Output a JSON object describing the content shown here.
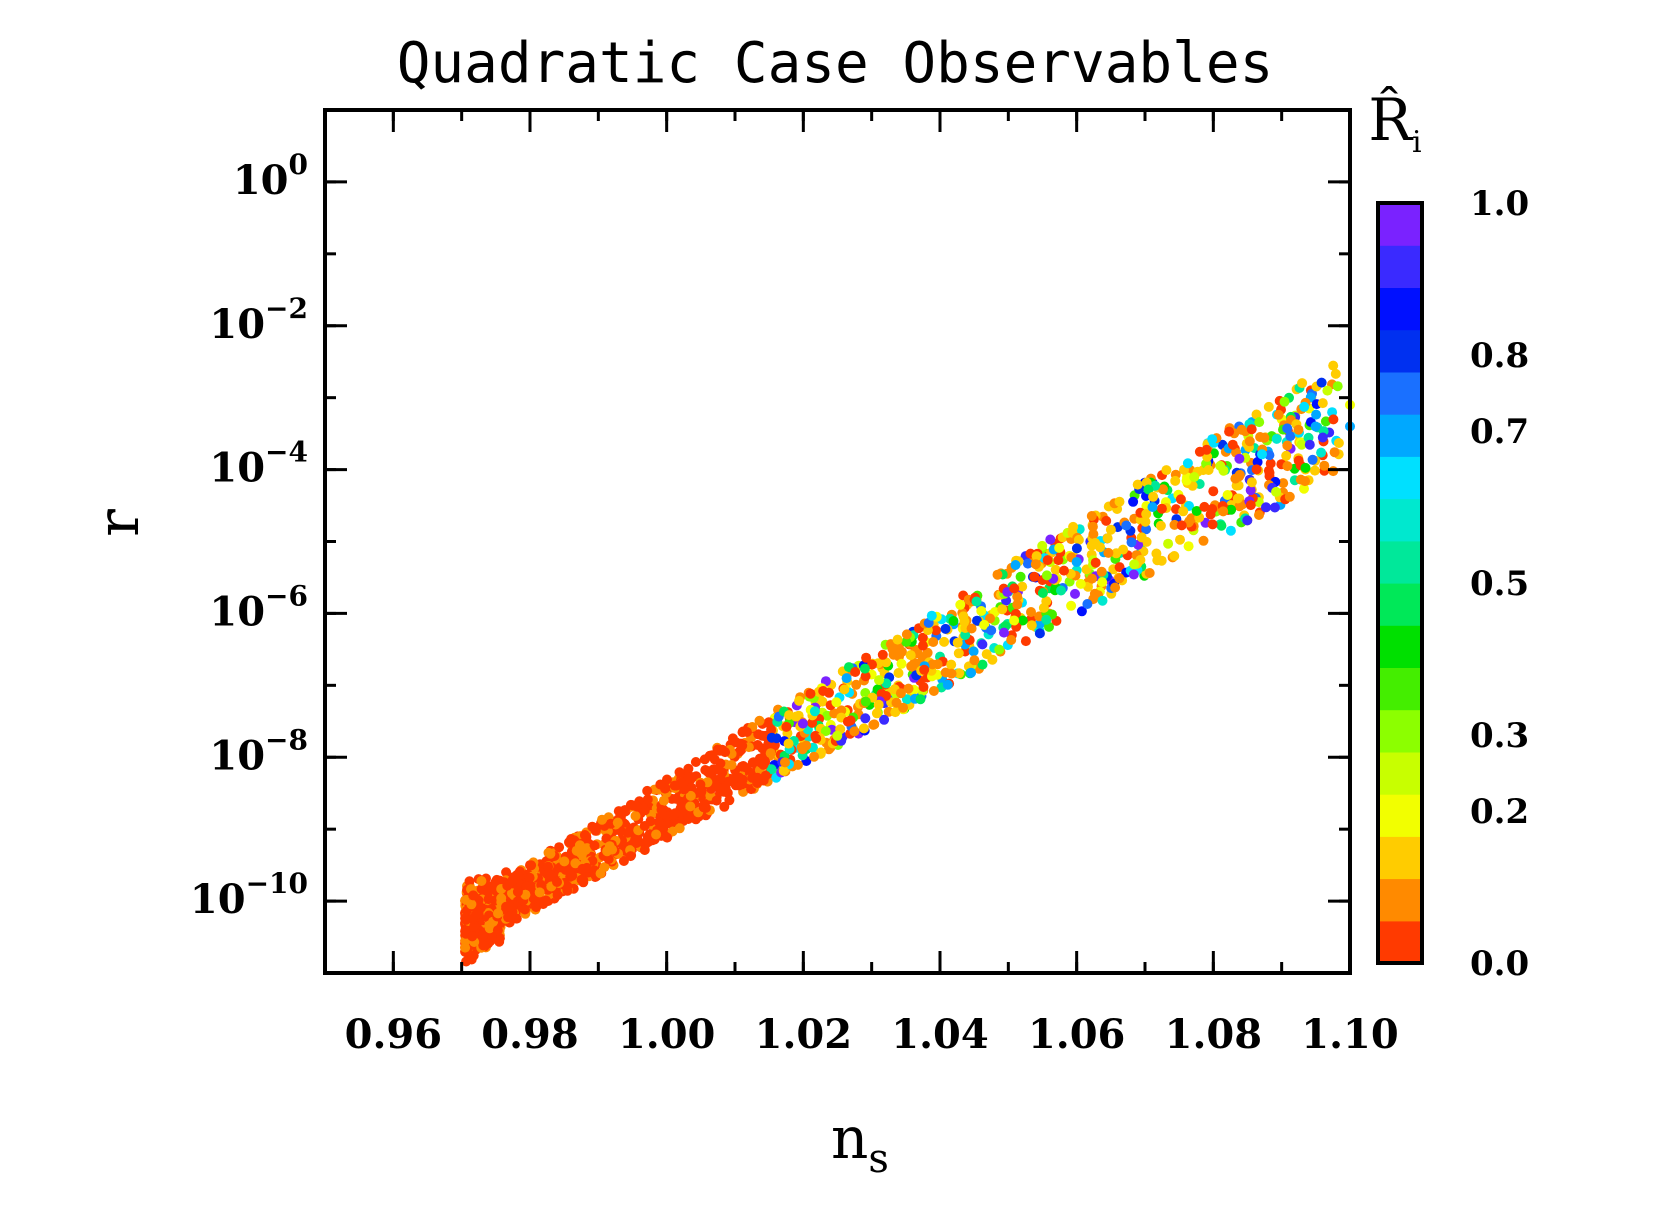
{
  "chart_data": {
    "type": "scatter",
    "title": "Quadratic Case Observables",
    "xlabel": "n",
    "xlabel_sub": "s",
    "ylabel": "r",
    "x_range": [
      0.95,
      1.1
    ],
    "y_log_range": [
      -11,
      1
    ],
    "y_scale": "log",
    "x_ticks": [
      {
        "value": 0.96,
        "label": "0.96"
      },
      {
        "value": 0.98,
        "label": "0.98"
      },
      {
        "value": 1.0,
        "label": "1.00"
      },
      {
        "value": 1.02,
        "label": "1.02"
      },
      {
        "value": 1.04,
        "label": "1.04"
      },
      {
        "value": 1.06,
        "label": "1.06"
      },
      {
        "value": 1.08,
        "label": "1.08"
      },
      {
        "value": 1.1,
        "label": "1.10"
      }
    ],
    "y_ticks": [
      {
        "exp": 0,
        "base": "10",
        "sup": "0"
      },
      {
        "exp": -2,
        "base": "10",
        "sup": "−2"
      },
      {
        "exp": -4,
        "base": "10",
        "sup": "−4"
      },
      {
        "exp": -6,
        "base": "10",
        "sup": "−6"
      },
      {
        "exp": -8,
        "base": "10",
        "sup": "−8"
      },
      {
        "exp": -10,
        "base": "10",
        "sup": "−10"
      }
    ],
    "colorbar": {
      "title": "R̂",
      "title_sub": "i",
      "range": [
        0.0,
        1.0
      ],
      "ticks": [
        {
          "value": 0.0,
          "label": "0.0"
        },
        {
          "value": 0.2,
          "label": "0.2"
        },
        {
          "value": 0.3,
          "label": "0.3"
        },
        {
          "value": 0.5,
          "label": "0.5"
        },
        {
          "value": 0.7,
          "label": "0.7"
        },
        {
          "value": 0.8,
          "label": "0.8"
        },
        {
          "value": 1.0,
          "label": "1.0"
        }
      ],
      "colors": [
        "#ff3a00",
        "#ff8a00",
        "#ffcc00",
        "#f2ff00",
        "#c8ff00",
        "#8cff00",
        "#44ee00",
        "#00e000",
        "#00e858",
        "#00e89a",
        "#00e8cf",
        "#00e0ff",
        "#00a8ff",
        "#1a70ff",
        "#0030f0",
        "#0010ff",
        "#3a2aff",
        "#7a22ff"
      ]
    },
    "grid": false,
    "series": [
      {
        "points": [
          [
            0.9705,
            -10.3,
            0.02
          ],
          [
            0.972,
            -10.05,
            0.03
          ],
          [
            0.9735,
            -9.8,
            0.01
          ],
          [
            0.975,
            -10.2,
            0.04
          ],
          [
            0.9765,
            -9.6,
            0.02
          ],
          [
            0.978,
            -9.9,
            0.05
          ],
          [
            0.98,
            -9.5,
            0.03
          ],
          [
            0.9815,
            -9.8,
            0.02
          ],
          [
            0.983,
            -9.3,
            0.04
          ],
          [
            0.985,
            -9.6,
            0.02
          ],
          [
            0.987,
            -9.1,
            0.03
          ],
          [
            0.989,
            -9.4,
            0.05
          ],
          [
            0.9905,
            -8.9,
            0.02
          ],
          [
            0.992,
            -9.25,
            0.03
          ],
          [
            0.994,
            -8.75,
            0.04
          ],
          [
            0.996,
            -9.05,
            0.02
          ],
          [
            0.998,
            -8.6,
            0.06
          ],
          [
            1.0,
            -8.85,
            0.03
          ],
          [
            1.002,
            -8.4,
            0.02
          ],
          [
            1.004,
            -8.65,
            0.05
          ],
          [
            1.006,
            -8.2,
            0.04
          ],
          [
            1.008,
            -8.45,
            0.02
          ],
          [
            1.01,
            -7.95,
            0.07
          ],
          [
            1.012,
            -8.2,
            0.03
          ],
          [
            1.014,
            -7.7,
            0.05
          ],
          [
            1.016,
            -7.95,
            0.08
          ],
          [
            1.018,
            -7.45,
            0.04
          ],
          [
            1.02,
            -7.75,
            0.12
          ],
          [
            1.022,
            -7.25,
            0.06
          ],
          [
            1.024,
            -7.55,
            0.22
          ],
          [
            1.026,
            -7.05,
            0.15
          ],
          [
            1.028,
            -7.3,
            0.08
          ],
          [
            1.03,
            -6.85,
            0.18
          ],
          [
            1.032,
            -7.05,
            0.25
          ],
          [
            1.034,
            -6.6,
            0.1
          ],
          [
            1.036,
            -6.85,
            0.35
          ],
          [
            1.038,
            -6.4,
            0.2
          ],
          [
            1.04,
            -6.6,
            0.55
          ],
          [
            1.042,
            -6.15,
            0.7
          ],
          [
            1.044,
            -6.35,
            0.4
          ],
          [
            1.046,
            -5.9,
            0.75
          ],
          [
            1.048,
            -6.1,
            0.28
          ],
          [
            1.05,
            -5.7,
            0.5
          ],
          [
            1.052,
            -5.85,
            0.65
          ],
          [
            1.054,
            -5.5,
            0.85
          ],
          [
            1.056,
            -5.65,
            0.45
          ],
          [
            1.058,
            -5.25,
            0.3
          ],
          [
            1.06,
            -5.4,
            0.6
          ],
          [
            1.062,
            -5.0,
            0.9
          ],
          [
            1.064,
            -5.15,
            0.7
          ],
          [
            1.066,
            -4.8,
            0.82
          ],
          [
            1.068,
            -4.95,
            0.05
          ],
          [
            1.07,
            -4.6,
            0.78
          ],
          [
            1.072,
            -4.75,
            0.4
          ],
          [
            1.074,
            -4.4,
            0.62
          ],
          [
            1.076,
            -4.5,
            0.15
          ],
          [
            1.078,
            -4.2,
            0.5
          ],
          [
            1.08,
            -4.3,
            0.02
          ],
          [
            1.082,
            -3.95,
            0.35
          ],
          [
            1.084,
            -4.05,
            0.75
          ],
          [
            1.086,
            -3.7,
            0.55
          ],
          [
            1.088,
            -3.75,
            0.7
          ],
          [
            1.09,
            -3.3,
            0.22
          ],
          [
            1.092,
            -3.25,
            0.25
          ],
          [
            1.094,
            -3.15,
            0.2
          ],
          [
            1.096,
            -3.8,
            0.05
          ],
          [
            1.098,
            -3.6,
            0.62
          ],
          [
            1.1,
            -3.4,
            0.68
          ],
          [
            1.1,
            -3.1,
            0.22
          ]
        ]
      }
    ]
  }
}
